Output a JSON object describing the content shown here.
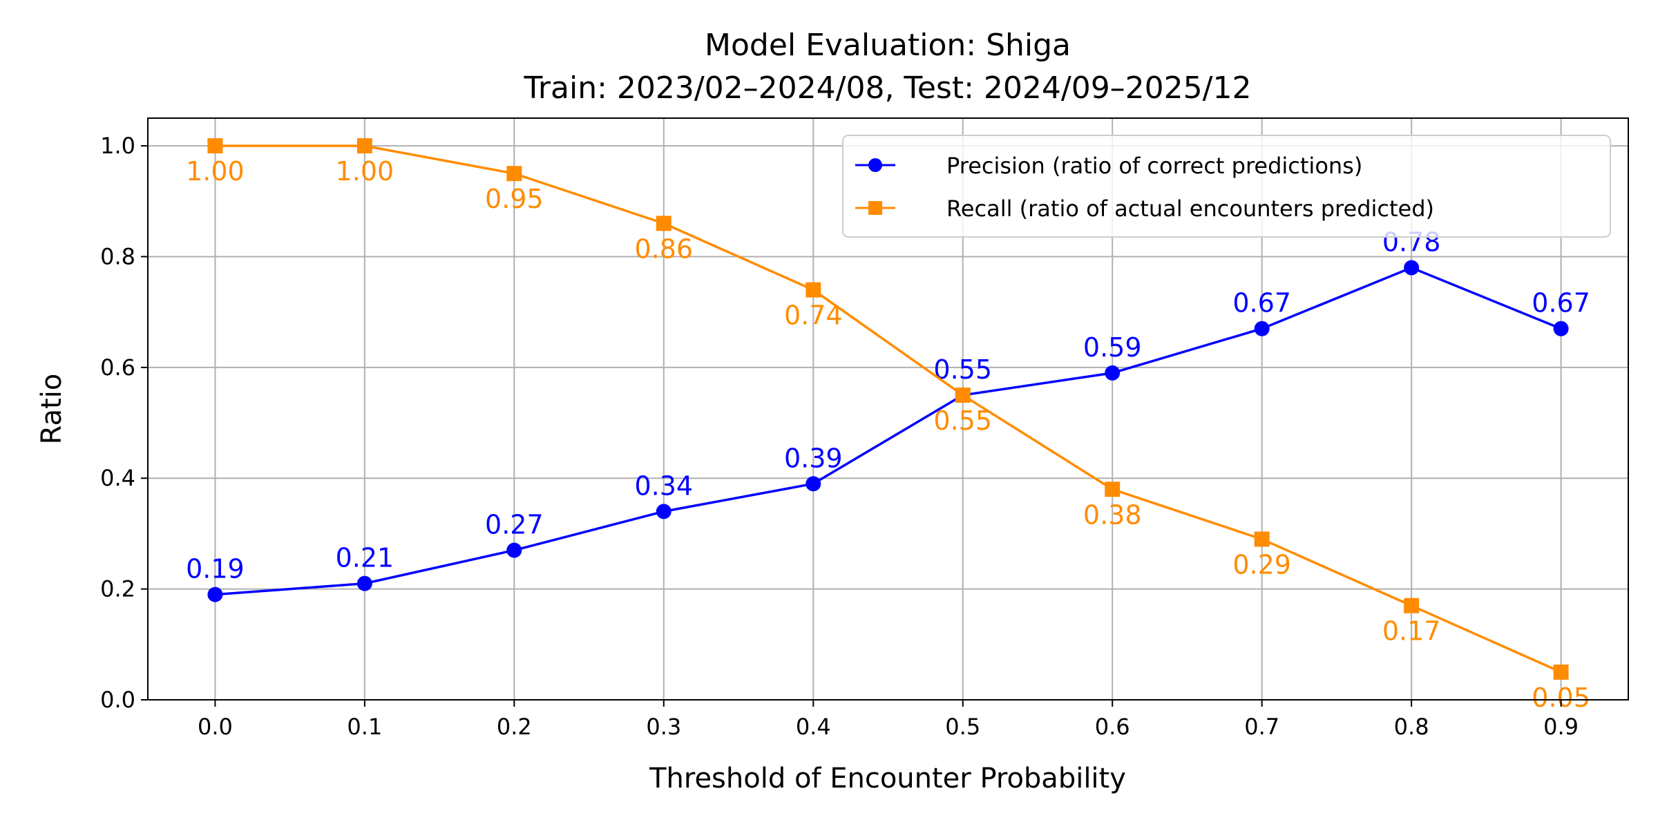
{
  "chart_data": {
    "type": "line",
    "title": "Model Evaluation: Shiga",
    "subtitle": "Train: 2023/02–2024/08, Test: 2024/09–2025/12",
    "xlabel": "Threshold of Encounter Probability",
    "ylabel": "Ratio",
    "x": [
      0.0,
      0.1,
      0.2,
      0.3,
      0.4,
      0.5,
      0.6,
      0.7,
      0.8,
      0.9
    ],
    "xticks": [
      "0.0",
      "0.1",
      "0.2",
      "0.3",
      "0.4",
      "0.5",
      "0.6",
      "0.7",
      "0.8",
      "0.9"
    ],
    "yticks": [
      "0.0",
      "0.2",
      "0.4",
      "0.6",
      "0.8",
      "1.0"
    ],
    "xlim": [
      -0.045,
      0.945
    ],
    "ylim": [
      0,
      1.05
    ],
    "grid": true,
    "legend_placement": "top-right",
    "series": [
      {
        "name": "Precision (ratio of correct predictions)",
        "color": "#0000ff",
        "marker": "circle",
        "values": [
          0.19,
          0.21,
          0.27,
          0.34,
          0.39,
          0.55,
          0.59,
          0.67,
          0.78,
          0.67
        ],
        "labels": [
          "0.19",
          "0.21",
          "0.27",
          "0.34",
          "0.39",
          "0.55",
          "0.59",
          "0.67",
          "0.78",
          "0.67"
        ]
      },
      {
        "name": "Recall (ratio of actual encounters predicted)",
        "color": "#ff8c00",
        "marker": "square",
        "values": [
          1.0,
          1.0,
          0.95,
          0.86,
          0.74,
          0.55,
          0.38,
          0.29,
          0.17,
          0.05
        ],
        "labels": [
          "1.00",
          "1.00",
          "0.95",
          "0.86",
          "0.74",
          "0.55",
          "0.38",
          "0.29",
          "0.17",
          "0.05"
        ]
      }
    ]
  }
}
